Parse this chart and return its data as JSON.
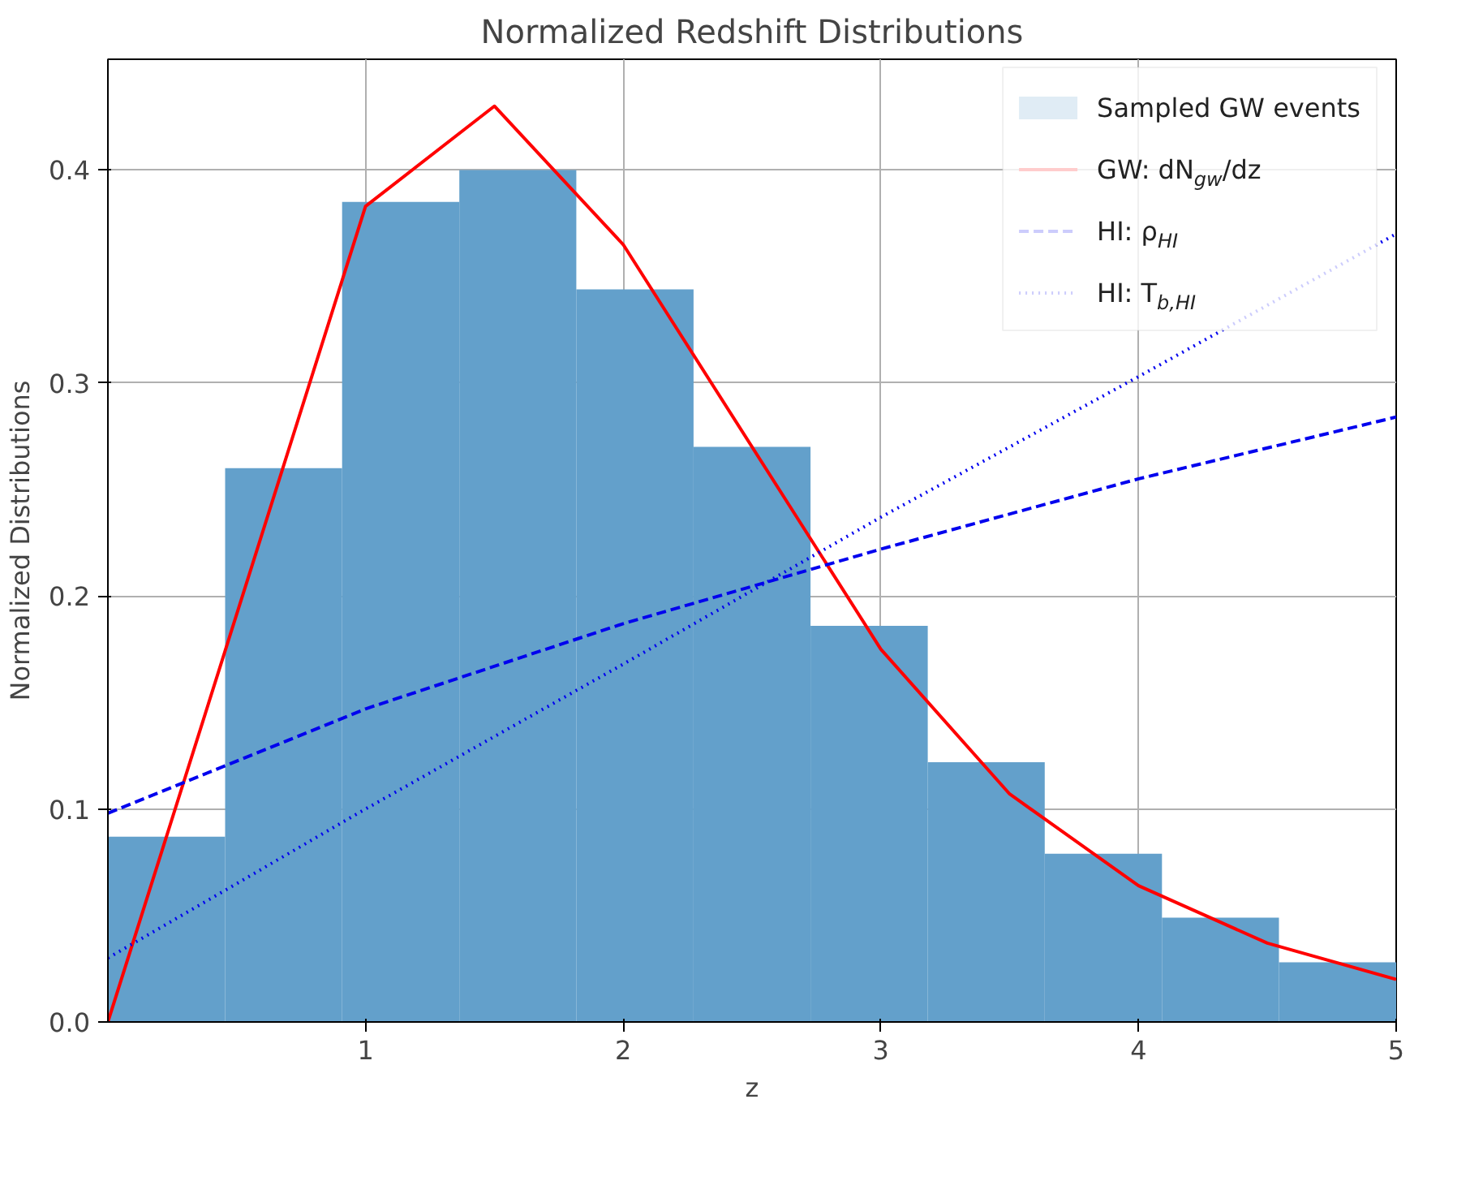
{
  "chart_data": {
    "type": "histogram",
    "title": "Normalized Redshift Distributions",
    "xlabel": "z",
    "ylabel": "Normalized Distributions",
    "series": [
      {
        "name": "Sampled GW events",
        "color": "#63a0cb",
        "bins": [
          0,
          0.455,
          0.909,
          1.364,
          1.818,
          2.273,
          2.727,
          3.182,
          3.636,
          4.091,
          4.545,
          5
        ],
        "values": [
          0.087,
          0.26,
          0.385,
          0.4,
          0.344,
          0.27,
          0.186,
          0.122,
          0.079,
          0.049,
          0.028
        ]
      },
      {
        "type": "line",
        "name": "GW: dN$_{gw}$/dz",
        "color": "#ff0000",
        "line_style": "solid",
        "x": [
          0,
          1,
          1.5,
          2,
          3,
          3.5,
          4,
          4.5,
          5
        ],
        "values": [
          0,
          0.383,
          0.43,
          0.365,
          0.175,
          0.107,
          0.064,
          0.037,
          0.02
        ]
      },
      {
        "type": "line",
        "name": "HI: ρ$_{HI}$",
        "color": "#0000ee",
        "line_style": "dashed",
        "x": [
          0,
          1,
          2,
          3,
          4,
          5
        ],
        "values": [
          0.098,
          0.147,
          0.187,
          0.222,
          0.255,
          0.284
        ]
      },
      {
        "type": "line",
        "name": "HI: T$_{b,HI}$",
        "color": "#0000ee",
        "line_style": "dotted",
        "x": [
          0,
          1,
          2,
          3,
          4,
          5
        ],
        "values": [
          0.03,
          0.1,
          0.168,
          0.237,
          0.303,
          0.37
        ]
      }
    ],
    "xlim": [
      0,
      5
    ],
    "xticks": [
      1,
      2,
      3,
      4,
      5
    ],
    "ylim": [
      0,
      0.452
    ],
    "yticks": [
      {
        "value": 0,
        "label": "0.0"
      },
      0.1,
      0.2,
      0.3,
      0.4
    ],
    "grid": true,
    "legend": "top right"
  }
}
